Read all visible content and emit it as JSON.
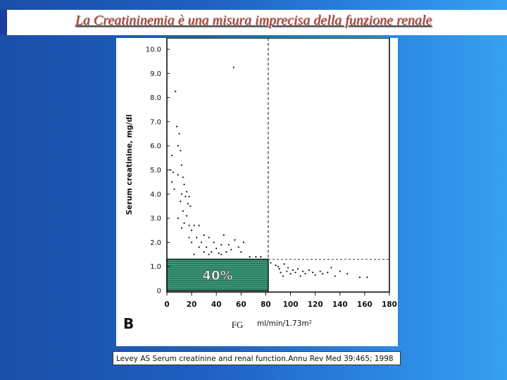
{
  "slide": {
    "title": "La Creatininemia è una misura imprecisa della funzione renale",
    "citation": "Levey AS Serum creatinine and renal function.Annu Rev Med 39:465; 1998"
  },
  "chart_data": {
    "type": "scatter",
    "panel_label": "B",
    "ylabel": "Serum creatinine, mg/dl",
    "xlabel": "FG",
    "xunit": "ml/min/1.73m²",
    "xlim": [
      0,
      180
    ],
    "ylim": [
      0,
      10
    ],
    "xticks": [
      "0",
      "20",
      "40",
      "60",
      "80",
      "100",
      "120",
      "140",
      "160",
      "180"
    ],
    "yticks": [
      "0",
      "1.0",
      "2.0",
      "3.0",
      "4.0",
      "5.0",
      "6.0",
      "7.0",
      "8.0",
      "9.0",
      "10.0"
    ],
    "vertical_reference_x": 82,
    "horizontal_reference_y": 1.3,
    "highlight_region": {
      "x": [
        0,
        82
      ],
      "y": [
        0,
        1.3
      ],
      "label": "40%",
      "color": "#3a9a7a"
    },
    "points": [
      [
        54,
        9.25
      ],
      [
        7,
        8.25
      ],
      [
        8,
        6.8
      ],
      [
        10,
        6.5
      ],
      [
        9,
        6.0
      ],
      [
        11,
        5.8
      ],
      [
        4,
        5.6
      ],
      [
        12,
        5.2
      ],
      [
        3,
        5.0
      ],
      [
        5,
        4.9
      ],
      [
        9,
        4.8
      ],
      [
        13,
        4.7
      ],
      [
        4,
        4.5
      ],
      [
        14,
        4.4
      ],
      [
        6,
        4.2
      ],
      [
        16,
        4.1
      ],
      [
        12,
        4.0
      ],
      [
        15,
        3.9
      ],
      [
        18,
        3.9
      ],
      [
        11,
        3.7
      ],
      [
        17,
        3.6
      ],
      [
        19,
        3.5
      ],
      [
        13,
        3.3
      ],
      [
        16,
        3.1
      ],
      [
        9,
        3.0
      ],
      [
        14,
        2.8
      ],
      [
        18,
        2.7
      ],
      [
        22,
        2.7
      ],
      [
        26,
        2.7
      ],
      [
        12,
        2.6
      ],
      [
        20,
        2.5
      ],
      [
        30,
        2.3
      ],
      [
        18,
        2.2
      ],
      [
        24,
        2.2
      ],
      [
        34,
        2.2
      ],
      [
        46,
        2.3
      ],
      [
        55,
        2.1
      ],
      [
        62,
        2.0
      ],
      [
        20,
        2.0
      ],
      [
        28,
        2.0
      ],
      [
        38,
        2.0
      ],
      [
        44,
        1.9
      ],
      [
        50,
        1.9
      ],
      [
        26,
        1.8
      ],
      [
        32,
        1.8
      ],
      [
        40,
        1.75
      ],
      [
        52,
        1.7
      ],
      [
        58,
        1.8
      ],
      [
        30,
        1.6
      ],
      [
        36,
        1.6
      ],
      [
        42,
        1.55
      ],
      [
        48,
        1.6
      ],
      [
        60,
        1.6
      ],
      [
        22,
        1.5
      ],
      [
        34,
        1.5
      ],
      [
        44,
        1.5
      ],
      [
        67,
        1.4
      ],
      [
        72,
        1.4
      ],
      [
        76,
        1.4
      ],
      [
        84,
        1.15
      ],
      [
        88,
        1.05
      ],
      [
        90,
        1.0
      ],
      [
        91,
        0.9
      ],
      [
        92,
        0.75
      ],
      [
        94,
        0.6
      ],
      [
        95,
        1.1
      ],
      [
        97,
        0.8
      ],
      [
        98,
        0.95
      ],
      [
        100,
        0.7
      ],
      [
        102,
        0.85
      ],
      [
        104,
        0.75
      ],
      [
        106,
        0.9
      ],
      [
        108,
        0.6
      ],
      [
        110,
        0.8
      ],
      [
        112,
        0.7
      ],
      [
        115,
        0.85
      ],
      [
        118,
        0.75
      ],
      [
        120,
        0.65
      ],
      [
        124,
        0.8
      ],
      [
        126,
        0.7
      ],
      [
        130,
        0.75
      ],
      [
        133,
        0.95
      ],
      [
        136,
        0.6
      ],
      [
        140,
        0.8
      ],
      [
        146,
        0.7
      ],
      [
        156,
        0.55
      ],
      [
        162,
        0.55
      ]
    ]
  }
}
